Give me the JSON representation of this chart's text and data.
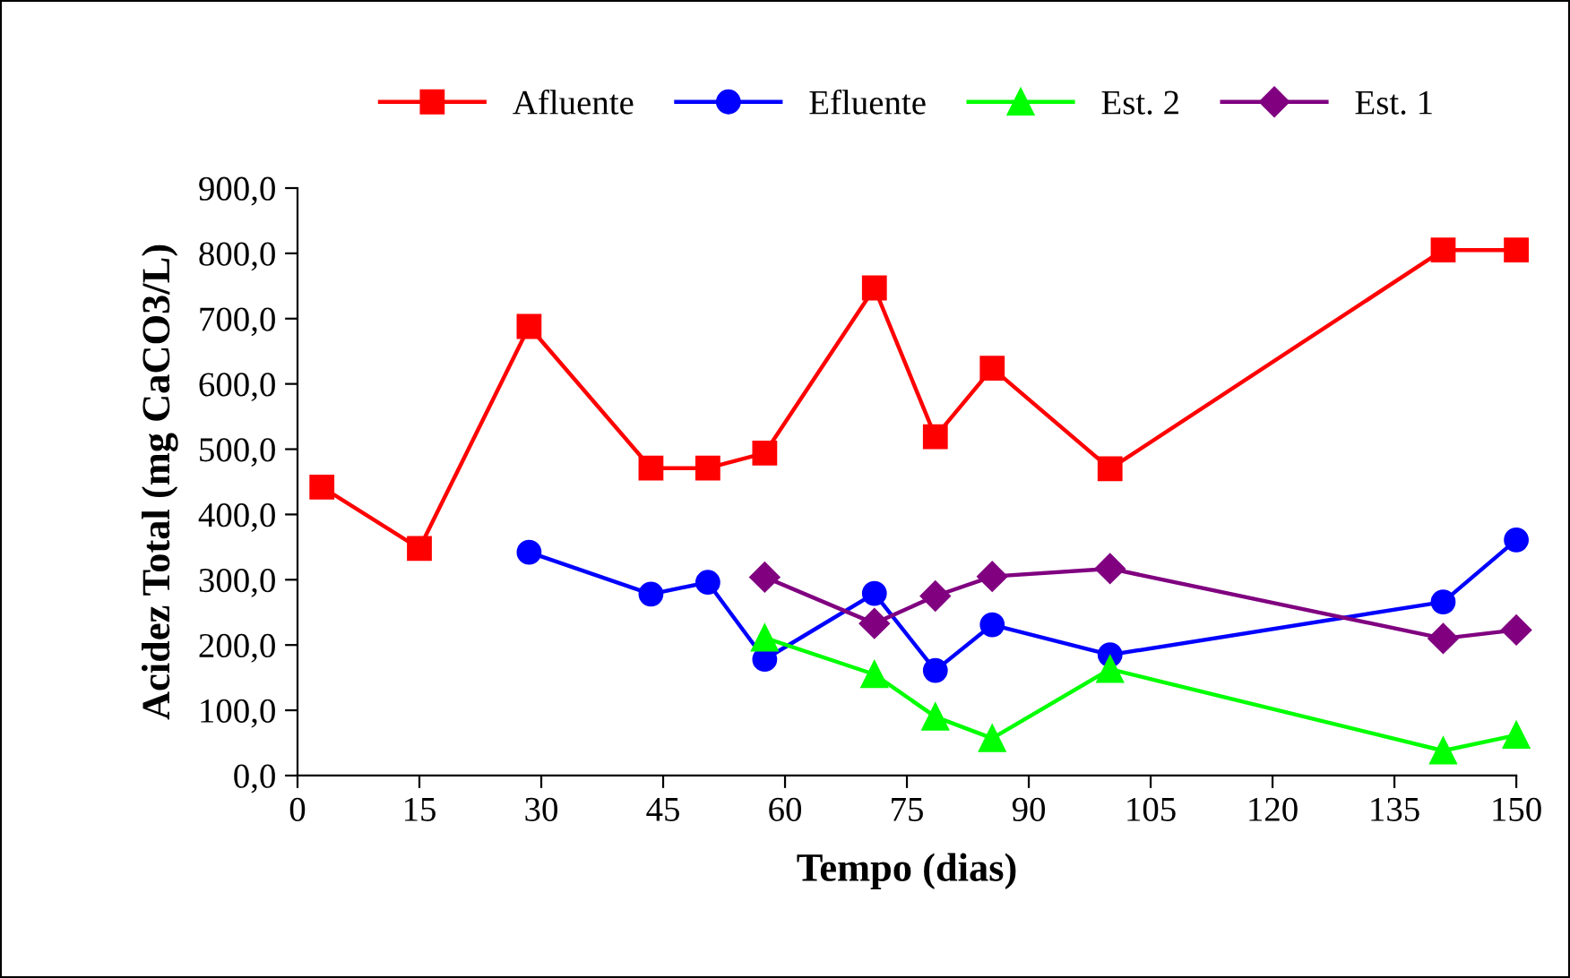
{
  "chart_data": {
    "type": "line",
    "xlabel": "Tempo (dias)",
    "ylabel": "Acidez Total (mg CaCO3/L)",
    "xlim": [
      0,
      150
    ],
    "xticks": [
      0,
      15,
      30,
      45,
      60,
      75,
      90,
      105,
      120,
      135,
      150
    ],
    "ylim": [
      0,
      900
    ],
    "yticks": [
      {
        "value": 0,
        "label": "0,0"
      },
      {
        "value": 100,
        "label": "100,0"
      },
      {
        "value": 200,
        "label": "200,0"
      },
      {
        "value": 300,
        "label": "300,0"
      },
      {
        "value": 400,
        "label": "400,0"
      },
      {
        "value": 500,
        "label": "500,0"
      },
      {
        "value": 600,
        "label": "600,0"
      },
      {
        "value": 700,
        "label": "700,0"
      },
      {
        "value": 800,
        "label": "800,0"
      },
      {
        "value": 900,
        "label": "900,0"
      }
    ],
    "legend": "top",
    "grid": false,
    "line_style": "solid",
    "series": [
      {
        "name": "Afluente",
        "color": "#ff0000",
        "marker": "square",
        "x": [
          3,
          15,
          28.5,
          43.5,
          50.5,
          57.5,
          71,
          78.5,
          85.5,
          100,
          141,
          150
        ],
        "values": [
          442,
          348,
          688,
          471,
          471,
          494,
          747,
          519,
          624,
          470,
          805,
          805
        ]
      },
      {
        "name": "Efluente",
        "color": "#0000ff",
        "marker": "circle",
        "x": [
          28.5,
          43.5,
          50.5,
          57.5,
          71,
          78.5,
          85.5,
          100,
          141,
          150
        ],
        "values": [
          342,
          278,
          296,
          178,
          279,
          161,
          231,
          185,
          266,
          361
        ]
      },
      {
        "name": "Est. 2",
        "color": "#00ff00",
        "marker": "triangle",
        "x": [
          57.5,
          71,
          78.5,
          85.5,
          100,
          141,
          150
        ],
        "values": [
          211,
          155,
          90,
          57,
          163,
          38,
          62
        ]
      },
      {
        "name": "Est. 1",
        "color": "#800080",
        "marker": "diamond",
        "x": [
          57.5,
          71,
          78.5,
          85.5,
          100,
          141,
          150
        ],
        "values": [
          304,
          233,
          275,
          305,
          317,
          210,
          223
        ]
      }
    ]
  }
}
